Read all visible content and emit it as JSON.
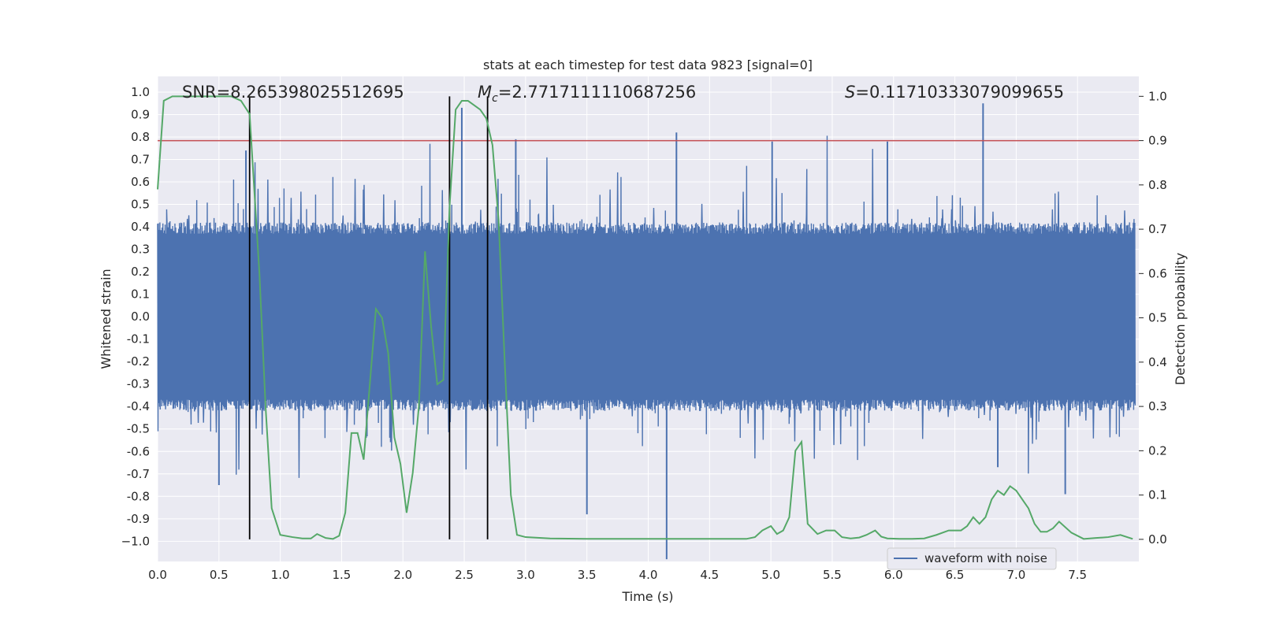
{
  "chart_data": {
    "type": "line",
    "title": "stats at each timestep for test data 9823 [signal=0]",
    "xlabel": "Time (s)",
    "ylabel_left": "Whitened strain",
    "ylabel_right": "Detection probability",
    "xlim": [
      0.0,
      8.0
    ],
    "ylim_left": [
      -1.09,
      1.07
    ],
    "ylim_right": [
      -0.05,
      1.045
    ],
    "x_ticks": [
      "0.0",
      "0.5",
      "1.0",
      "1.5",
      "2.0",
      "2.5",
      "3.0",
      "3.5",
      "4.0",
      "4.5",
      "5.0",
      "5.5",
      "6.0",
      "6.5",
      "7.0",
      "7.5"
    ],
    "x_tick_values": [
      0.0,
      0.5,
      1.0,
      1.5,
      2.0,
      2.5,
      3.0,
      3.5,
      4.0,
      4.5,
      5.0,
      5.5,
      6.0,
      6.5,
      7.0,
      7.5
    ],
    "y_left_ticks": [
      "1.0",
      "0.9",
      "0.8",
      "0.7",
      "0.6",
      "0.5",
      "0.4",
      "0.3",
      "0.2",
      "0.1",
      "0.0",
      "-0.1",
      "-0.2",
      "-0.3",
      "-0.4",
      "-0.5",
      "-0.6",
      "-0.7",
      "-0.8",
      "-0.9",
      "−1.0"
    ],
    "y_left_tick_values": [
      1.0,
      0.9,
      0.8,
      0.7,
      0.6,
      0.5,
      0.4,
      0.3,
      0.2,
      0.1,
      0.0,
      -0.1,
      -0.2,
      -0.3,
      -0.4,
      -0.5,
      -0.6,
      -0.7,
      -0.8,
      -0.9,
      -1.0
    ],
    "y_right_ticks": [
      "1.0",
      "0.9",
      "0.8",
      "0.7",
      "0.6",
      "0.5",
      "0.4",
      "0.3",
      "0.2",
      "0.1",
      "0.0"
    ],
    "y_right_tick_values": [
      1.0,
      0.9,
      0.8,
      0.7,
      0.6,
      0.5,
      0.4,
      0.3,
      0.2,
      0.1,
      0.0
    ],
    "threshold": 0.9,
    "vertical_lines": [
      0.75,
      2.38,
      2.69
    ],
    "annotations": {
      "snr": "SNR=8.265398025512695",
      "mc_symbol": "M",
      "mc_sub": "c",
      "mc_value": "=2.7717111110687256",
      "s_symbol": "S",
      "s_value": "=0.11710333079099655"
    },
    "legend": {
      "label": "waveform with noise",
      "position": "lower-right"
    },
    "colors": {
      "background": "#eaeaf2",
      "grid": "#ffffff",
      "waveform": "#4c72b0",
      "probability": "#55a868",
      "threshold": "#c44e52",
      "vlines": "#000000"
    },
    "series": [
      {
        "name": "waveform with noise",
        "style": "dense noise",
        "core_amplitude": 0.37,
        "typical_peak": 0.52,
        "spikes": [
          {
            "t": 0.72,
            "v": 0.74
          },
          {
            "t": 2.48,
            "v": 0.93
          },
          {
            "t": 2.92,
            "v": 0.79
          },
          {
            "t": 4.23,
            "v": 0.82
          },
          {
            "t": 5.01,
            "v": 0.78
          },
          {
            "t": 5.95,
            "v": 0.78
          },
          {
            "t": 6.73,
            "v": 0.95
          },
          {
            "t": 3.5,
            "v": -0.88
          },
          {
            "t": 4.15,
            "v": -1.08
          },
          {
            "t": 0.5,
            "v": -0.75
          },
          {
            "t": 7.4,
            "v": -0.79
          },
          {
            "t": 6.85,
            "v": -0.67
          }
        ]
      },
      {
        "name": "detection probability",
        "x": [
          0.0,
          0.05,
          0.12,
          0.2,
          0.3,
          0.4,
          0.5,
          0.6,
          0.68,
          0.75,
          0.83,
          0.88,
          0.93,
          1.0,
          1.1,
          1.18,
          1.25,
          1.3,
          1.37,
          1.43,
          1.48,
          1.53,
          1.58,
          1.63,
          1.68,
          1.73,
          1.78,
          1.83,
          1.88,
          1.93,
          1.98,
          2.03,
          2.08,
          2.13,
          2.18,
          2.23,
          2.28,
          2.33,
          2.38,
          2.43,
          2.48,
          2.53,
          2.58,
          2.63,
          2.68,
          2.73,
          2.78,
          2.83,
          2.88,
          2.93,
          3.0,
          3.2,
          3.5,
          3.8,
          4.0,
          4.3,
          4.6,
          4.8,
          4.87,
          4.93,
          5.0,
          5.05,
          5.1,
          5.15,
          5.2,
          5.25,
          5.3,
          5.38,
          5.45,
          5.52,
          5.58,
          5.65,
          5.72,
          5.78,
          5.85,
          5.9,
          5.95,
          6.05,
          6.15,
          6.25,
          6.35,
          6.45,
          6.55,
          6.6,
          6.65,
          6.7,
          6.75,
          6.8,
          6.85,
          6.9,
          6.95,
          7.0,
          7.05,
          7.1,
          7.15,
          7.2,
          7.25,
          7.3,
          7.35,
          7.45,
          7.55,
          7.6,
          7.65,
          7.75,
          7.85,
          7.95
        ],
        "values": [
          0.79,
          0.99,
          1.0,
          1.0,
          1.0,
          1.0,
          1.0,
          1.0,
          0.99,
          0.96,
          0.6,
          0.3,
          0.07,
          0.01,
          0.005,
          0.002,
          0.002,
          0.012,
          0.003,
          0.001,
          0.008,
          0.06,
          0.24,
          0.24,
          0.18,
          0.35,
          0.52,
          0.5,
          0.42,
          0.23,
          0.17,
          0.06,
          0.15,
          0.3,
          0.65,
          0.48,
          0.35,
          0.36,
          0.75,
          0.97,
          0.99,
          0.99,
          0.98,
          0.97,
          0.95,
          0.89,
          0.72,
          0.4,
          0.1,
          0.01,
          0.005,
          0.002,
          0.001,
          0.001,
          0.001,
          0.001,
          0.001,
          0.001,
          0.005,
          0.02,
          0.03,
          0.012,
          0.02,
          0.05,
          0.2,
          0.22,
          0.035,
          0.012,
          0.02,
          0.02,
          0.005,
          0.002,
          0.004,
          0.01,
          0.02,
          0.006,
          0.002,
          0.001,
          0.001,
          0.002,
          0.01,
          0.02,
          0.02,
          0.03,
          0.05,
          0.035,
          0.05,
          0.09,
          0.11,
          0.1,
          0.12,
          0.11,
          0.09,
          0.07,
          0.035,
          0.017,
          0.017,
          0.025,
          0.04,
          0.015,
          0.001,
          0.002,
          0.003,
          0.005,
          0.01,
          0.001
        ]
      }
    ]
  }
}
